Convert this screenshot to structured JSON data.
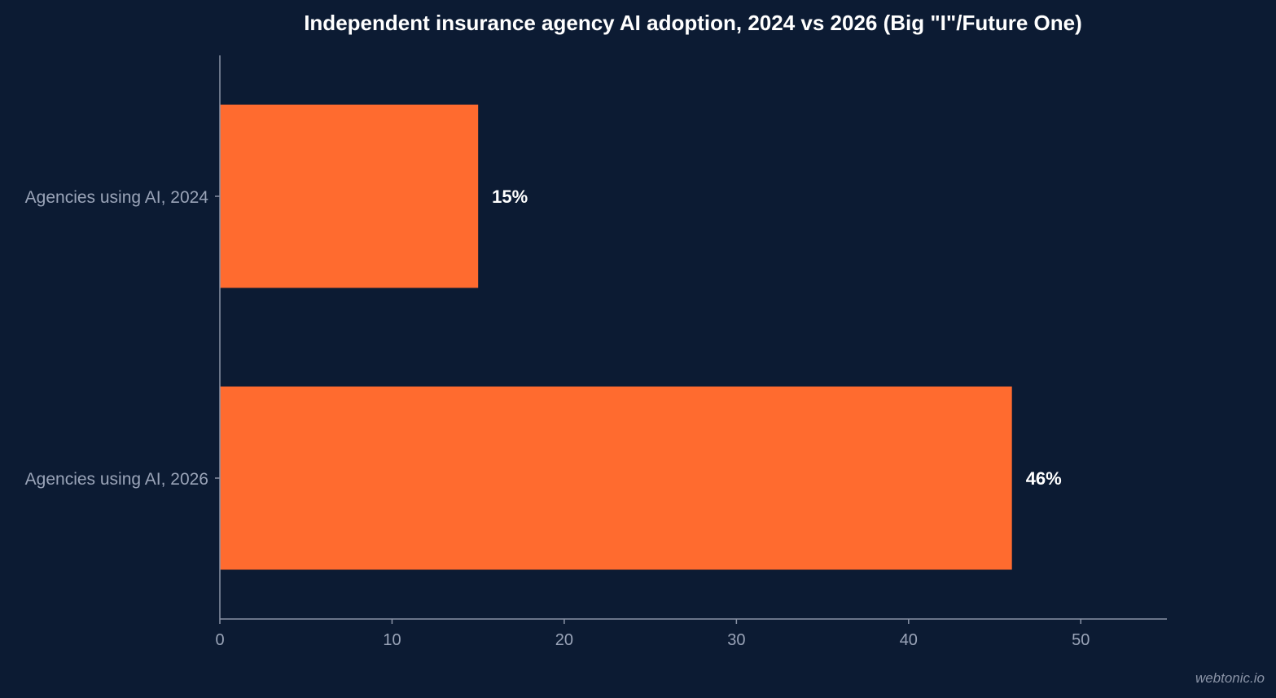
{
  "colors": {
    "background": "#0c1b33",
    "bar": "#ff6b2f",
    "axis": "#8a93a6",
    "label": "#9aa4b8",
    "value_label": "#ffffff"
  },
  "chart_data": {
    "type": "bar",
    "orientation": "horizontal",
    "title": "Independent insurance agency AI adoption, 2024 vs 2026 (Big \"I\"/Future One)",
    "categories": [
      "Agencies using AI, 2024",
      "Agencies using AI, 2026"
    ],
    "values": [
      15,
      46
    ],
    "value_labels": [
      "15%",
      "46%"
    ],
    "xlim": [
      0,
      55
    ],
    "xticks": [
      0,
      10,
      20,
      30,
      40,
      50
    ],
    "xlabel": "",
    "ylabel": "",
    "grid": false,
    "legend": "none"
  },
  "watermark": "webtonic.io"
}
